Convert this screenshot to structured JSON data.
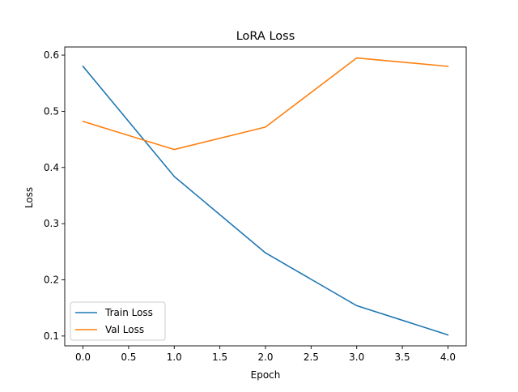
{
  "chart_data": {
    "type": "line",
    "title": "LoRA Loss",
    "xlabel": "Epoch",
    "ylabel": "Loss",
    "xlim": [
      -0.2,
      4.2
    ],
    "ylim": [
      0.0825,
      0.6145
    ],
    "xticks": [
      0.0,
      0.5,
      1.0,
      1.5,
      2.0,
      2.5,
      3.0,
      3.5,
      4.0
    ],
    "xtick_labels": [
      "0.0",
      "0.5",
      "1.0",
      "1.5",
      "2.0",
      "2.5",
      "3.0",
      "3.5",
      "4.0"
    ],
    "yticks": [
      0.1,
      0.2,
      0.3,
      0.4,
      0.5,
      0.6
    ],
    "ytick_labels": [
      "0.1",
      "0.2",
      "0.3",
      "0.4",
      "0.5",
      "0.6"
    ],
    "grid": false,
    "legend_position": "lower-left",
    "x": [
      0,
      1,
      2,
      3,
      4
    ],
    "series": [
      {
        "name": "Train Loss",
        "color": "#1f77b4",
        "values": [
          0.58,
          0.384,
          0.248,
          0.154,
          0.102
        ]
      },
      {
        "name": "Val Loss",
        "color": "#ff7f0e",
        "values": [
          0.482,
          0.432,
          0.472,
          0.595,
          0.58
        ]
      }
    ]
  }
}
